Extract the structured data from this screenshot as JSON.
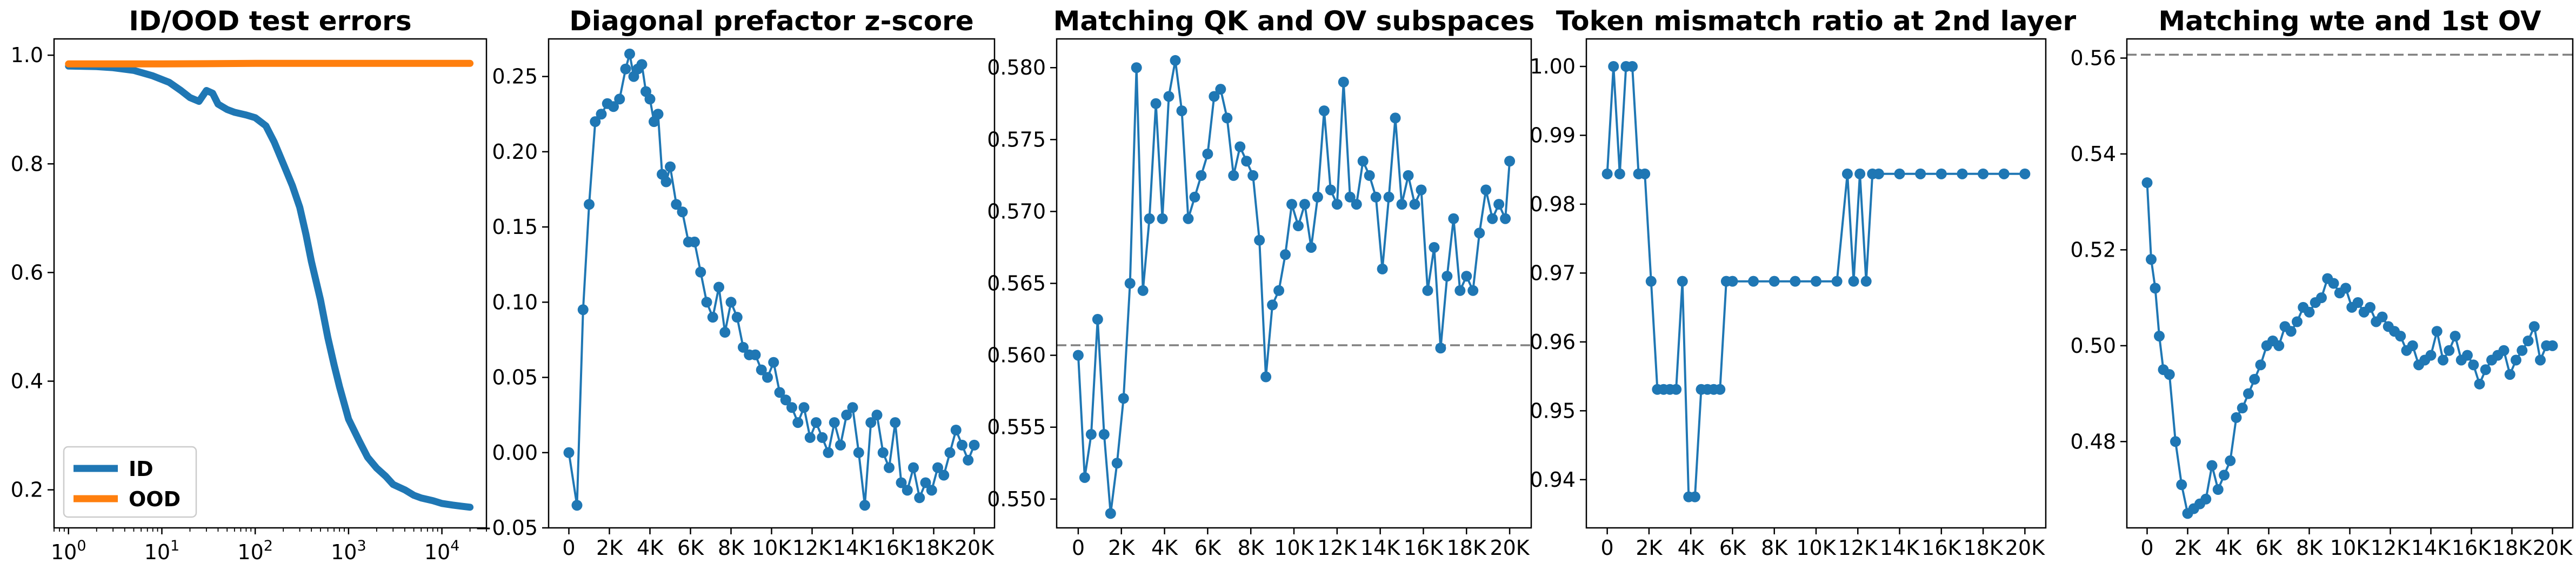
{
  "colors": {
    "blue": "#1f77b4",
    "orange": "#ff7f0e",
    "ref_line": "#808080"
  },
  "chart_data": [
    {
      "type": "line",
      "title": "ID/OOD test errors",
      "xlabel": "",
      "ylabel": "",
      "xscale": "log",
      "xlim": [
        0.7,
        30000
      ],
      "ylim": [
        0.13,
        1.03
      ],
      "yticks": [
        0.2,
        0.4,
        0.6,
        0.8,
        1.0
      ],
      "ytick_labels": [
        "0.2",
        "0.4",
        "0.6",
        "0.8",
        "1.0"
      ],
      "xticks": [
        1,
        10,
        100,
        1000,
        10000
      ],
      "xtick_labels": [
        "10^0",
        "10^1",
        "10^2",
        "10^3",
        "10^4"
      ],
      "legend": {
        "position": "lower-left",
        "entries": [
          "ID",
          "OOD"
        ]
      },
      "grid": false,
      "series": [
        {
          "name": "ID",
          "color": "blue",
          "x": [
            1,
            2,
            3,
            5,
            8,
            12,
            16,
            20,
            25,
            30,
            35,
            40,
            50,
            60,
            80,
            100,
            130,
            160,
            200,
            250,
            300,
            350,
            400,
            500,
            600,
            700,
            800,
            1000,
            1300,
            1600,
            2000,
            2500,
            3000,
            4000,
            5000,
            6000,
            8000,
            10000,
            13000,
            16000,
            20000
          ],
          "y": [
            0.98,
            0.979,
            0.977,
            0.972,
            0.962,
            0.95,
            0.935,
            0.922,
            0.915,
            0.935,
            0.93,
            0.91,
            0.9,
            0.895,
            0.89,
            0.885,
            0.87,
            0.84,
            0.8,
            0.76,
            0.72,
            0.67,
            0.62,
            0.55,
            0.48,
            0.43,
            0.39,
            0.33,
            0.29,
            0.26,
            0.24,
            0.225,
            0.21,
            0.2,
            0.19,
            0.185,
            0.18,
            0.175,
            0.172,
            0.17,
            0.168
          ]
        },
        {
          "name": "OOD",
          "color": "orange",
          "x": [
            1,
            10,
            100,
            1000,
            10000,
            20000
          ],
          "y": [
            0.984,
            0.984,
            0.985,
            0.985,
            0.985,
            0.985
          ]
        }
      ]
    },
    {
      "type": "line",
      "title": "Diagonal prefactor z-score",
      "xlabel": "",
      "ylabel": "",
      "xlim": [
        -1000,
        21000
      ],
      "ylim": [
        -0.05,
        0.275
      ],
      "xticks": [
        0,
        2000,
        4000,
        6000,
        8000,
        10000,
        12000,
        14000,
        16000,
        18000,
        20000
      ],
      "xtick_labels": [
        "0",
        "2K",
        "4K",
        "6K",
        "8K",
        "10K",
        "12K",
        "14K",
        "16K",
        "18K",
        "20K"
      ],
      "yticks": [
        -0.05,
        0.0,
        0.05,
        0.1,
        0.15,
        0.2,
        0.25
      ],
      "ytick_labels": [
        "−0.05",
        "0.00",
        "0.05",
        "0.10",
        "0.15",
        "0.20",
        "0.25"
      ],
      "markers": true,
      "grid": false,
      "series": [
        {
          "color": "blue",
          "x": [
            0,
            400,
            700,
            1000,
            1300,
            1600,
            1900,
            2200,
            2500,
            2800,
            3000,
            3200,
            3400,
            3600,
            3800,
            4000,
            4200,
            4400,
            4600,
            4800,
            5000,
            5300,
            5600,
            5900,
            6200,
            6500,
            6800,
            7100,
            7400,
            7700,
            8000,
            8300,
            8600,
            8900,
            9200,
            9500,
            9800,
            10100,
            10400,
            10700,
            11000,
            11300,
            11600,
            11900,
            12200,
            12500,
            12800,
            13100,
            13400,
            13700,
            14000,
            14300,
            14600,
            14900,
            15200,
            15500,
            15800,
            16100,
            16400,
            16700,
            17000,
            17300,
            17600,
            17900,
            18200,
            18500,
            18800,
            19100,
            19400,
            19700,
            20000
          ],
          "y": [
            0.0,
            -0.035,
            0.095,
            0.165,
            0.22,
            0.225,
            0.232,
            0.23,
            0.235,
            0.255,
            0.265,
            0.25,
            0.255,
            0.258,
            0.24,
            0.235,
            0.22,
            0.225,
            0.185,
            0.18,
            0.19,
            0.165,
            0.16,
            0.14,
            0.14,
            0.12,
            0.1,
            0.09,
            0.11,
            0.08,
            0.1,
            0.09,
            0.07,
            0.065,
            0.065,
            0.055,
            0.05,
            0.06,
            0.04,
            0.035,
            0.03,
            0.02,
            0.03,
            0.01,
            0.02,
            0.01,
            0.0,
            0.02,
            0.005,
            0.025,
            0.03,
            0.0,
            -0.035,
            0.02,
            0.025,
            0.0,
            -0.01,
            0.02,
            -0.02,
            -0.025,
            -0.01,
            -0.03,
            -0.02,
            -0.025,
            -0.01,
            -0.015,
            0.0,
            0.015,
            0.005,
            -0.005,
            0.005
          ]
        }
      ]
    },
    {
      "type": "line",
      "title": "Matching QK and OV subspaces",
      "xlabel": "",
      "ylabel": "",
      "xlim": [
        -1000,
        21000
      ],
      "ylim": [
        0.548,
        0.582
      ],
      "xticks": [
        0,
        2000,
        4000,
        6000,
        8000,
        10000,
        12000,
        14000,
        16000,
        18000,
        20000
      ],
      "xtick_labels": [
        "0",
        "2K",
        "4K",
        "6K",
        "8K",
        "10K",
        "12K",
        "14K",
        "16K",
        "18K",
        "20K"
      ],
      "yticks": [
        0.55,
        0.555,
        0.56,
        0.565,
        0.57,
        0.575,
        0.58
      ],
      "ytick_labels": [
        "0.550",
        "0.555",
        "0.560",
        "0.565",
        "0.570",
        "0.575",
        "0.580"
      ],
      "reference_line_y": 0.5607,
      "markers": true,
      "grid": false,
      "series": [
        {
          "color": "blue",
          "x": [
            0,
            300,
            600,
            900,
            1200,
            1500,
            1800,
            2100,
            2400,
            2700,
            3000,
            3300,
            3600,
            3900,
            4200,
            4500,
            4800,
            5100,
            5400,
            5700,
            6000,
            6300,
            6600,
            6900,
            7200,
            7500,
            7800,
            8100,
            8400,
            8700,
            9000,
            9300,
            9600,
            9900,
            10200,
            10500,
            10800,
            11100,
            11400,
            11700,
            12000,
            12300,
            12600,
            12900,
            13200,
            13500,
            13800,
            14100,
            14400,
            14700,
            15000,
            15300,
            15600,
            15900,
            16200,
            16500,
            16800,
            17100,
            17400,
            17700,
            18000,
            18300,
            18600,
            18900,
            19200,
            19500,
            19800,
            20000
          ],
          "y": [
            0.56,
            0.5515,
            0.5545,
            0.5625,
            0.5545,
            0.549,
            0.5525,
            0.557,
            0.565,
            0.58,
            0.5645,
            0.5695,
            0.5775,
            0.5695,
            0.578,
            0.5805,
            0.577,
            0.5695,
            0.571,
            0.5725,
            0.574,
            0.578,
            0.5785,
            0.5765,
            0.5725,
            0.5745,
            0.5735,
            0.5725,
            0.568,
            0.5585,
            0.5635,
            0.5645,
            0.567,
            0.5705,
            0.569,
            0.5705,
            0.5675,
            0.571,
            0.577,
            0.5715,
            0.5705,
            0.579,
            0.571,
            0.5705,
            0.5735,
            0.5725,
            0.571,
            0.566,
            0.571,
            0.5765,
            0.5705,
            0.5725,
            0.5705,
            0.5715,
            0.5645,
            0.5675,
            0.5605,
            0.5655,
            0.5695,
            0.5645,
            0.5655,
            0.5645,
            0.5685,
            0.5715,
            0.5695,
            0.5705,
            0.5695,
            0.5735
          ]
        }
      ]
    },
    {
      "type": "line",
      "title": "Token mismatch ratio at 2nd layer",
      "xlabel": "",
      "ylabel": "",
      "xlim": [
        -1000,
        21000
      ],
      "ylim": [
        0.933,
        1.004
      ],
      "xticks": [
        0,
        2000,
        4000,
        6000,
        8000,
        10000,
        12000,
        14000,
        16000,
        18000,
        20000
      ],
      "xtick_labels": [
        "0",
        "2K",
        "4K",
        "6K",
        "8K",
        "10K",
        "12K",
        "14K",
        "16K",
        "18K",
        "20K"
      ],
      "yticks": [
        0.94,
        0.95,
        0.96,
        0.97,
        0.98,
        0.99,
        1.0
      ],
      "ytick_labels": [
        "0.94",
        "0.95",
        "0.96",
        "0.97",
        "0.98",
        "0.99",
        "1.00"
      ],
      "markers": true,
      "grid": false,
      "series": [
        {
          "color": "blue",
          "x": [
            0,
            300,
            600,
            900,
            1200,
            1500,
            1800,
            2100,
            2400,
            2700,
            3000,
            3300,
            3600,
            3900,
            4200,
            4500,
            4800,
            5100,
            5400,
            5700,
            6000,
            7000,
            8000,
            9000,
            10000,
            11000,
            11500,
            11800,
            12100,
            12400,
            12700,
            13000,
            14000,
            15000,
            16000,
            17000,
            18000,
            19000,
            20000
          ],
          "y": [
            0.9844,
            1.0,
            0.9844,
            1.0,
            1.0,
            0.9844,
            0.9844,
            0.9688,
            0.9531,
            0.9531,
            0.9531,
            0.9531,
            0.9688,
            0.9375,
            0.9375,
            0.9531,
            0.9531,
            0.9531,
            0.9531,
            0.9688,
            0.9688,
            0.9688,
            0.9688,
            0.9688,
            0.9688,
            0.9688,
            0.9844,
            0.9688,
            0.9844,
            0.9688,
            0.9844,
            0.9844,
            0.9844,
            0.9844,
            0.9844,
            0.9844,
            0.9844,
            0.9844,
            0.9844
          ]
        }
      ]
    },
    {
      "type": "line",
      "title": "Matching wte and 1st OV",
      "xlabel": "",
      "ylabel": "",
      "xlim": [
        -1000,
        21000
      ],
      "ylim": [
        0.462,
        0.564
      ],
      "xticks": [
        0,
        2000,
        4000,
        6000,
        8000,
        10000,
        12000,
        14000,
        16000,
        18000,
        20000
      ],
      "xtick_labels": [
        "0",
        "2K",
        "4K",
        "6K",
        "8K",
        "10K",
        "12K",
        "14K",
        "16K",
        "18K",
        "20K"
      ],
      "yticks": [
        0.48,
        0.5,
        0.52,
        0.54,
        0.56
      ],
      "ytick_labels": [
        "0.48",
        "0.50",
        "0.52",
        "0.54",
        "0.56"
      ],
      "reference_line_y": 0.5607,
      "markers": true,
      "grid": false,
      "series": [
        {
          "color": "blue",
          "x": [
            0,
            200,
            400,
            600,
            800,
            1100,
            1400,
            1700,
            2000,
            2300,
            2600,
            2900,
            3200,
            3500,
            3800,
            4100,
            4400,
            4700,
            5000,
            5300,
            5600,
            5900,
            6200,
            6500,
            6800,
            7100,
            7400,
            7700,
            8000,
            8300,
            8600,
            8900,
            9200,
            9500,
            9800,
            10100,
            10400,
            10700,
            11000,
            11300,
            11600,
            11900,
            12200,
            12500,
            12800,
            13100,
            13400,
            13700,
            14000,
            14300,
            14600,
            14900,
            15200,
            15500,
            15800,
            16100,
            16400,
            16700,
            17000,
            17300,
            17600,
            17900,
            18200,
            18500,
            18800,
            19100,
            19400,
            19700,
            20000
          ],
          "y": [
            0.534,
            0.518,
            0.512,
            0.502,
            0.495,
            0.494,
            0.48,
            0.471,
            0.465,
            0.466,
            0.467,
            0.468,
            0.475,
            0.47,
            0.473,
            0.476,
            0.485,
            0.487,
            0.49,
            0.493,
            0.496,
            0.5,
            0.501,
            0.5,
            0.504,
            0.503,
            0.505,
            0.508,
            0.507,
            0.509,
            0.51,
            0.514,
            0.513,
            0.511,
            0.512,
            0.508,
            0.509,
            0.507,
            0.508,
            0.505,
            0.506,
            0.504,
            0.503,
            0.502,
            0.499,
            0.5,
            0.496,
            0.497,
            0.498,
            0.503,
            0.497,
            0.499,
            0.502,
            0.497,
            0.498,
            0.496,
            0.492,
            0.495,
            0.497,
            0.498,
            0.499,
            0.494,
            0.497,
            0.499,
            0.501,
            0.504,
            0.497,
            0.5,
            0.5
          ]
        }
      ]
    }
  ]
}
